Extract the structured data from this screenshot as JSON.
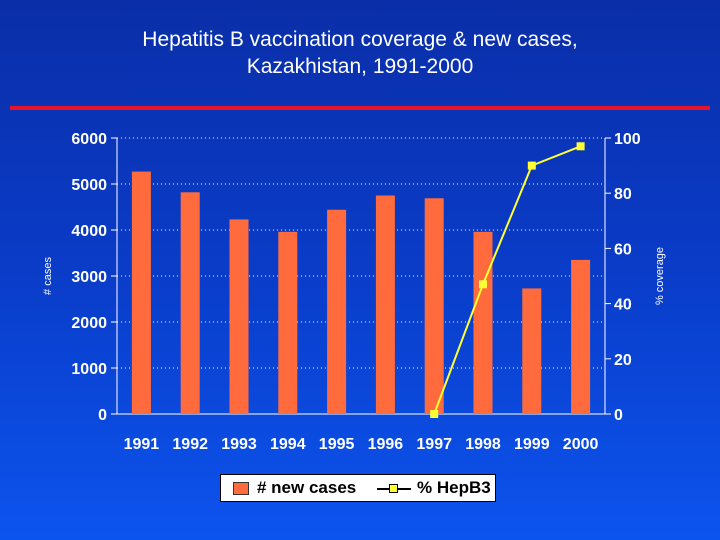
{
  "title_line1": "Hepatitis B vaccination coverage & new cases,",
  "title_line2": "Kazakhistan, 1991-2000",
  "colors": {
    "background": "#0a3cc8",
    "title_rule": "#e8122a",
    "bars": "#ff6b3d",
    "line": "#ffff33",
    "gridline": "#ffffff"
  },
  "chart_data": {
    "type": "bar",
    "categories": [
      "1991",
      "1992",
      "1993",
      "1994",
      "1995",
      "1996",
      "1997",
      "1998",
      "1999",
      "2000"
    ],
    "series": [
      {
        "name": "# new cases",
        "type": "bar",
        "axis": "left",
        "values": [
          5270,
          4820,
          4230,
          3960,
          4440,
          4750,
          4690,
          3960,
          2730,
          3350
        ]
      },
      {
        "name": "% HepB3",
        "type": "line",
        "axis": "right",
        "values": [
          null,
          null,
          null,
          null,
          null,
          null,
          0,
          47,
          90,
          97
        ]
      }
    ],
    "ylabel": "# cases",
    "y2label": "% coverage",
    "ylim": [
      0,
      6000
    ],
    "yticks": [
      "0",
      "1000",
      "2000",
      "3000",
      "4000",
      "5000",
      "6000"
    ],
    "y2lim": [
      0,
      100
    ],
    "y2ticks": [
      "0",
      "20",
      "40",
      "60",
      "80",
      "100"
    ],
    "grid": true,
    "legend_position": "bottom"
  }
}
